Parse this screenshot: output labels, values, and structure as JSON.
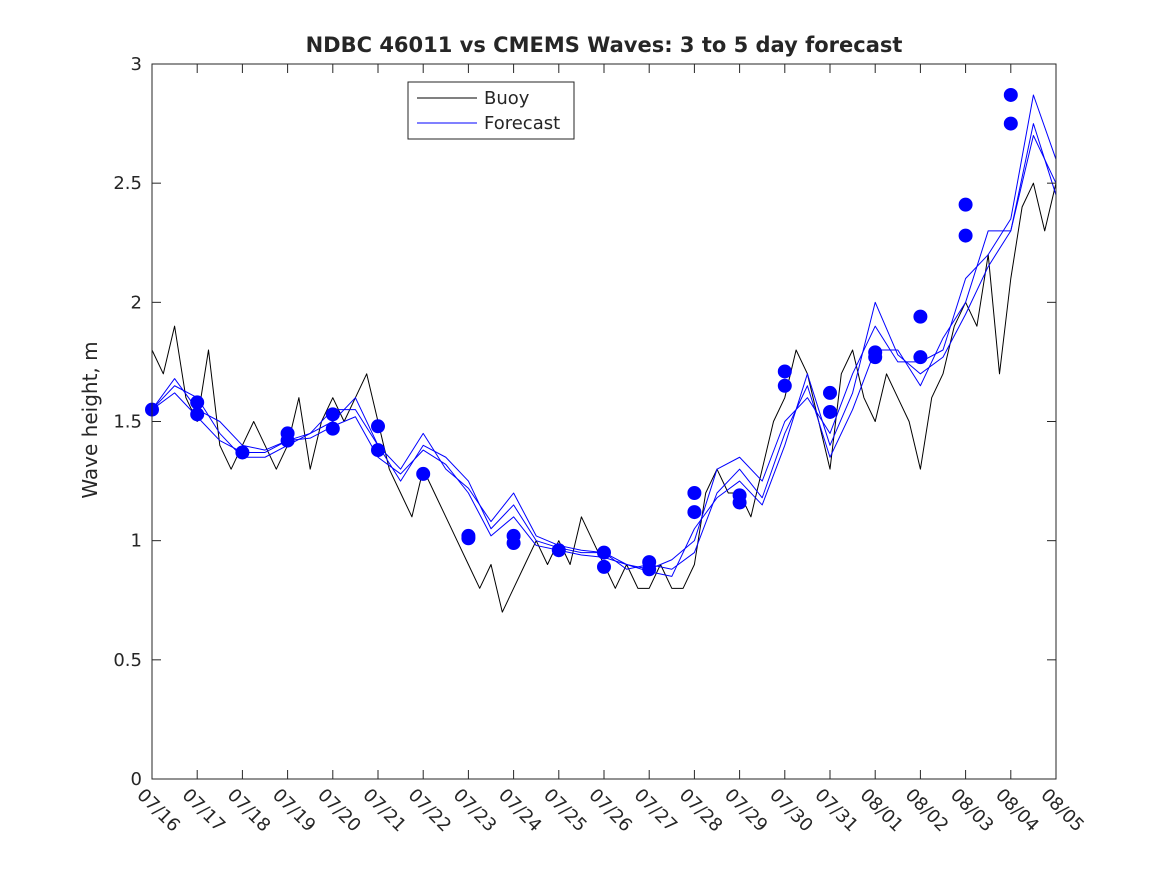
{
  "chart_data": {
    "type": "line",
    "title": "NDBC 46011 vs CMEMS Waves: 3 to 5 day forecast",
    "xlabel": "",
    "ylabel": "Wave height, m",
    "ylim": [
      0,
      3
    ],
    "xlim": [
      "07/16",
      "08/05"
    ],
    "x_tick_labels": [
      "07/16",
      "07/17",
      "07/18",
      "07/19",
      "07/20",
      "07/21",
      "07/22",
      "07/23",
      "07/24",
      "07/25",
      "07/26",
      "07/27",
      "07/28",
      "07/29",
      "07/30",
      "07/31",
      "08/01",
      "08/02",
      "08/03",
      "08/04",
      "08/05"
    ],
    "y_tick_labels": [
      "0",
      "0.5",
      "1",
      "1.5",
      "2",
      "2.5",
      "3"
    ],
    "y_ticks": [
      0,
      0.5,
      1,
      1.5,
      2,
      2.5,
      3
    ],
    "legend": {
      "position": "top-center",
      "entries": [
        {
          "label": "Buoy",
          "color": "#000000"
        },
        {
          "label": "Forecast",
          "color": "#0000ff"
        }
      ]
    },
    "colors": {
      "buoy": "#000000",
      "forecast": "#0000ff",
      "markers": "#0000ff"
    },
    "grid": false,
    "series": [
      {
        "name": "Buoy",
        "color": "#000000",
        "x": [
          "07/16 00:00",
          "07/16 06:00",
          "07/16 12:00",
          "07/16 18:00",
          "07/17 00:00",
          "07/17 06:00",
          "07/17 12:00",
          "07/17 18:00",
          "07/18 00:00",
          "07/18 06:00",
          "07/18 12:00",
          "07/18 18:00",
          "07/19 00:00",
          "07/19 06:00",
          "07/19 12:00",
          "07/19 18:00",
          "07/20 00:00",
          "07/20 06:00",
          "07/20 12:00",
          "07/20 18:00",
          "07/21 00:00",
          "07/21 06:00",
          "07/21 12:00",
          "07/21 18:00",
          "07/22 00:00",
          "07/22 06:00",
          "07/22 12:00",
          "07/22 18:00",
          "07/23 00:00",
          "07/23 06:00",
          "07/23 12:00",
          "07/23 18:00",
          "07/24 00:00",
          "07/24 06:00",
          "07/24 12:00",
          "07/24 18:00",
          "07/25 00:00",
          "07/25 06:00",
          "07/25 12:00",
          "07/25 18:00",
          "07/26 00:00",
          "07/26 06:00",
          "07/26 12:00",
          "07/26 18:00",
          "07/27 00:00",
          "07/27 06:00",
          "07/27 12:00",
          "07/27 18:00",
          "07/28 00:00",
          "07/28 06:00",
          "07/28 12:00",
          "07/28 18:00",
          "07/29 00:00",
          "07/29 06:00",
          "07/29 12:00",
          "07/29 18:00",
          "07/30 00:00",
          "07/30 06:00",
          "07/30 12:00",
          "07/30 18:00",
          "07/31 00:00",
          "07/31 06:00",
          "07/31 12:00",
          "07/31 18:00",
          "08/01 00:00",
          "08/01 06:00",
          "08/01 12:00",
          "08/01 18:00",
          "08/02 00:00",
          "08/02 06:00",
          "08/02 12:00",
          "08/02 18:00",
          "08/03 00:00",
          "08/03 06:00",
          "08/03 12:00",
          "08/03 18:00",
          "08/04 00:00",
          "08/04 06:00",
          "08/04 12:00",
          "08/04 18:00",
          "08/05 00:00"
        ],
        "values": [
          1.8,
          1.7,
          1.9,
          1.6,
          1.5,
          1.8,
          1.4,
          1.3,
          1.4,
          1.5,
          1.4,
          1.3,
          1.4,
          1.6,
          1.3,
          1.5,
          1.6,
          1.5,
          1.6,
          1.7,
          1.5,
          1.3,
          1.2,
          1.1,
          1.3,
          1.2,
          1.1,
          1.0,
          0.9,
          0.8,
          0.9,
          0.7,
          0.8,
          0.9,
          1.0,
          0.9,
          1.0,
          0.9,
          1.1,
          1.0,
          0.9,
          0.8,
          0.9,
          0.8,
          0.8,
          0.9,
          0.8,
          0.8,
          0.9,
          1.2,
          1.3,
          1.2,
          1.2,
          1.1,
          1.3,
          1.5,
          1.6,
          1.8,
          1.7,
          1.5,
          1.3,
          1.7,
          1.8,
          1.6,
          1.5,
          1.7,
          1.6,
          1.5,
          1.3,
          1.6,
          1.7,
          1.9,
          2.0,
          1.9,
          2.2,
          1.7,
          2.1,
          2.4,
          2.5,
          2.3,
          2.5
        ]
      },
      {
        "name": "Forecast",
        "color": "#0000ff",
        "x": [
          "07/16",
          "07/16 12:00",
          "07/17",
          "07/17 12:00",
          "07/18",
          "07/18 12:00",
          "07/19",
          "07/19 12:00",
          "07/20",
          "07/20 12:00",
          "07/21",
          "07/21 12:00",
          "07/22",
          "07/22 12:00",
          "07/23",
          "07/23 12:00",
          "07/24",
          "07/24 12:00",
          "07/25",
          "07/25 12:00",
          "07/26",
          "07/26 12:00",
          "07/27",
          "07/27 12:00",
          "07/28",
          "07/28 12:00",
          "07/29",
          "07/29 12:00",
          "07/30",
          "07/30 12:00",
          "07/31",
          "07/31 12:00",
          "08/01",
          "08/01 12:00",
          "08/02",
          "08/02 12:00",
          "08/03",
          "08/03 12:00",
          "08/04",
          "08/04 12:00",
          "08/05"
        ],
        "values": [
          1.55,
          1.68,
          1.55,
          1.5,
          1.4,
          1.38,
          1.42,
          1.45,
          1.5,
          1.6,
          1.4,
          1.3,
          1.45,
          1.3,
          1.22,
          1.08,
          1.2,
          1.02,
          0.98,
          0.96,
          0.95,
          0.9,
          0.88,
          0.92,
          1.0,
          1.3,
          1.35,
          1.25,
          1.5,
          1.6,
          1.45,
          1.7,
          1.9,
          1.75,
          1.75,
          1.8,
          2.1,
          2.2,
          2.35,
          2.87,
          2.6
        ]
      },
      {
        "name": "Forecast",
        "color": "#0000ff",
        "x": [
          "07/16",
          "07/16 12:00",
          "07/17",
          "07/17 12:00",
          "07/18",
          "07/18 12:00",
          "07/19",
          "07/19 12:00",
          "07/20",
          "07/20 12:00",
          "07/21",
          "07/21 12:00",
          "07/22",
          "07/22 12:00",
          "07/23",
          "07/23 12:00",
          "07/24",
          "07/24 12:00",
          "07/25",
          "07/25 12:00",
          "07/26",
          "07/26 12:00",
          "07/27",
          "07/27 12:00",
          "07/28",
          "07/28 12:00",
          "07/29",
          "07/29 12:00",
          "07/30",
          "07/30 12:00",
          "07/31",
          "07/31 12:00",
          "08/01",
          "08/01 12:00",
          "08/02",
          "08/02 12:00",
          "08/03",
          "08/03 12:00",
          "08/04",
          "08/04 12:00",
          "08/05"
        ],
        "values": [
          1.55,
          1.65,
          1.6,
          1.45,
          1.35,
          1.35,
          1.4,
          1.45,
          1.55,
          1.55,
          1.4,
          1.25,
          1.4,
          1.35,
          1.25,
          1.05,
          1.15,
          1.0,
          0.97,
          0.95,
          0.95,
          0.88,
          0.9,
          0.88,
          0.95,
          1.2,
          1.3,
          1.18,
          1.45,
          1.65,
          1.35,
          1.55,
          1.8,
          1.8,
          1.65,
          1.85,
          2.0,
          2.3,
          2.3,
          2.75,
          2.45
        ]
      },
      {
        "name": "Forecast",
        "color": "#0000ff",
        "x": [
          "07/16",
          "07/16 12:00",
          "07/17",
          "07/17 12:00",
          "07/18",
          "07/18 12:00",
          "07/19",
          "07/19 12:00",
          "07/20",
          "07/20 12:00",
          "07/21",
          "07/21 12:00",
          "07/22",
          "07/22 12:00",
          "07/23",
          "07/23 12:00",
          "07/24",
          "07/24 12:00",
          "07/25",
          "07/25 12:00",
          "07/26",
          "07/26 12:00",
          "07/27",
          "07/27 12:00",
          "07/28",
          "07/28 12:00",
          "07/29",
          "07/29 12:00",
          "07/30",
          "07/30 12:00",
          "07/31",
          "07/31 12:00",
          "08/01",
          "08/01 12:00",
          "08/02",
          "08/02 12:00",
          "08/03",
          "08/03 12:00",
          "08/04",
          "08/04 12:00",
          "08/05"
        ],
        "values": [
          1.55,
          1.62,
          1.52,
          1.42,
          1.37,
          1.37,
          1.42,
          1.43,
          1.48,
          1.52,
          1.35,
          1.28,
          1.38,
          1.32,
          1.2,
          1.02,
          1.1,
          0.98,
          0.96,
          0.94,
          0.93,
          0.9,
          0.87,
          0.85,
          1.05,
          1.18,
          1.25,
          1.15,
          1.4,
          1.7,
          1.4,
          1.62,
          2.0,
          1.78,
          1.7,
          1.77,
          1.95,
          2.15,
          2.3,
          2.7,
          2.5
        ]
      }
    ],
    "markers": {
      "name": "Forecast",
      "x": [
        "07/16",
        "07/17",
        "07/17",
        "07/18",
        "07/19",
        "07/19",
        "07/20",
        "07/20",
        "07/21",
        "07/21",
        "07/22",
        "07/23",
        "07/23",
        "07/24",
        "07/24",
        "07/25",
        "07/26",
        "07/26",
        "07/27",
        "07/27",
        "07/28",
        "07/28",
        "07/29",
        "07/29",
        "07/30",
        "07/30",
        "07/31",
        "07/31",
        "08/01",
        "08/01",
        "08/02",
        "08/02",
        "08/03",
        "08/03",
        "08/04",
        "08/04"
      ],
      "values": [
        1.55,
        1.58,
        1.53,
        1.37,
        1.45,
        1.42,
        1.53,
        1.47,
        1.48,
        1.38,
        1.28,
        1.02,
        1.01,
        1.02,
        0.99,
        0.96,
        0.95,
        0.89,
        0.91,
        0.88,
        1.2,
        1.12,
        1.19,
        1.16,
        1.71,
        1.65,
        1.62,
        1.54,
        1.79,
        1.77,
        1.94,
        1.77,
        2.41,
        2.28,
        2.87,
        2.75
      ]
    }
  }
}
